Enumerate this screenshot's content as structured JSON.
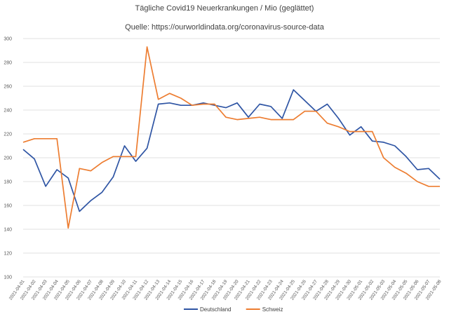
{
  "chart_data": {
    "type": "line",
    "title": "Tägliche Covid19 Neuerkrankungen  / Mio (geglättet)",
    "subtitle": "Quelle: https://ourworldindata.org/coronavirus-source-data",
    "xlabel": "",
    "ylabel": "",
    "ylim": [
      100,
      300
    ],
    "yticks": [
      100,
      120,
      140,
      160,
      180,
      200,
      220,
      240,
      260,
      280,
      300
    ],
    "grid": true,
    "legend_position": "bottom",
    "x": [
      "2021-04-01",
      "2021-04-02",
      "2021-04-03",
      "2021-04-04",
      "2021-04-05",
      "2021-04-06",
      "2021-04-07",
      "2021-04-08",
      "2021-04-09",
      "2021-04-10",
      "2021-04-11",
      "2021-04-12",
      "2021-04-13",
      "2021-04-14",
      "2021-04-15",
      "2021-04-16",
      "2021-04-17",
      "2021-04-18",
      "2021-04-19",
      "2021-04-20",
      "2021-04-21",
      "2021-04-22",
      "2021-04-23",
      "2021-04-24",
      "2021-04-25",
      "2021-04-26",
      "2021-04-27",
      "2021-04-28",
      "2021-04-29",
      "2021-04-30",
      "2021-05-01",
      "2021-05-02",
      "2021-05-03",
      "2021-05-04",
      "2021-05-05",
      "2021-05-06",
      "2021-05-07",
      "2021-05-08"
    ],
    "series": [
      {
        "name": "Deutschland",
        "color": "#2F55A4",
        "values": [
          207,
          199,
          176,
          190,
          183,
          155,
          164,
          171,
          184,
          210,
          197,
          208,
          245,
          246,
          244,
          244,
          246,
          244,
          242,
          246,
          234,
          245,
          243,
          233,
          257,
          248,
          239,
          245,
          233,
          219,
          226,
          214,
          213,
          210,
          201,
          190,
          191,
          182
        ]
      },
      {
        "name": "Schweiz",
        "color": "#ED7D31",
        "values": [
          213,
          216,
          216,
          216,
          141,
          191,
          189,
          196,
          201,
          201,
          201,
          293,
          249,
          254,
          250,
          244,
          245,
          245,
          234,
          232,
          233,
          234,
          232,
          232,
          232,
          239,
          239,
          229,
          226,
          222,
          222,
          222,
          200,
          192,
          187,
          180,
          176,
          176
        ]
      }
    ]
  }
}
